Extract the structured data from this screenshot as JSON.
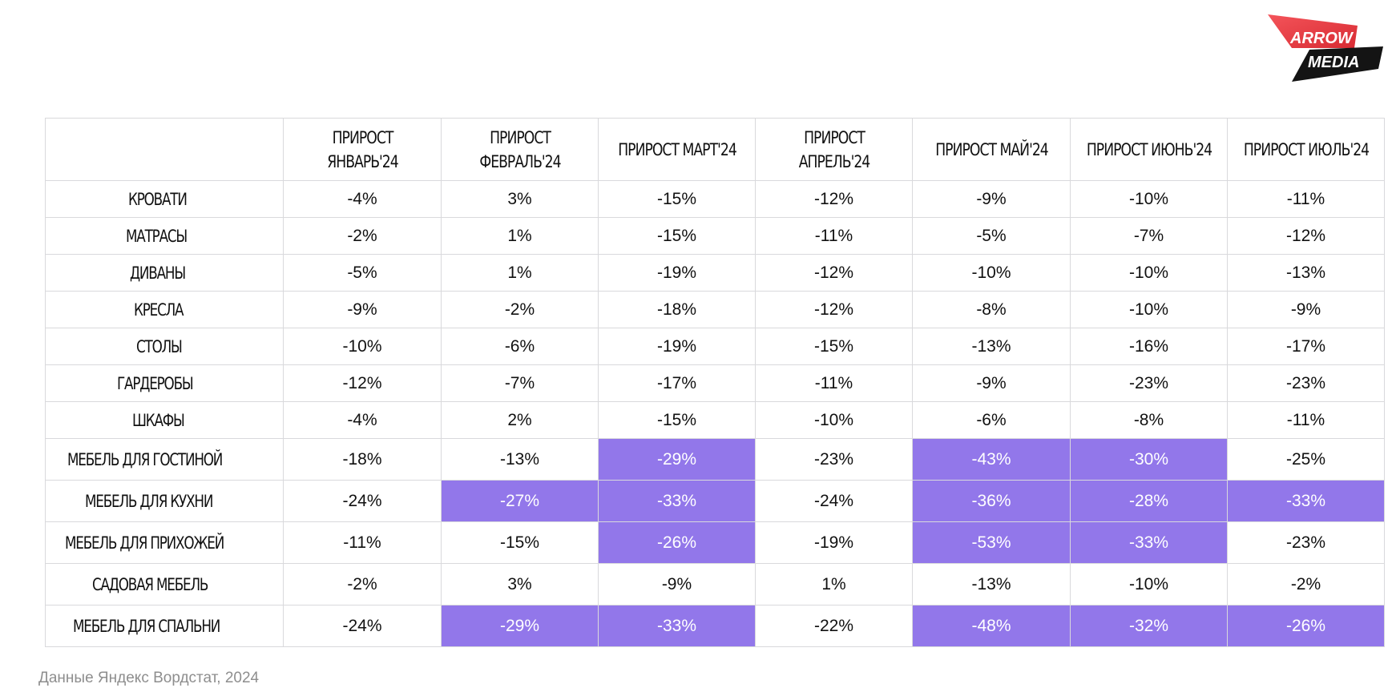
{
  "logo": {
    "line1": "ARROW",
    "line2": "MEDIA",
    "colors": {
      "red": "#ea3a3f",
      "dark": "#141414"
    }
  },
  "colors": {
    "highlight": "#9277ea",
    "grid": "#d9d9dc",
    "note": "#8e8e8e"
  },
  "chart_data": {
    "type": "table",
    "columns": [
      "",
      "ПРИРОСТ ЯНВАРЬ'24",
      "ПРИРОСТ ФЕВРАЛЬ'24",
      "ПРИРОСТ МАРТ'24",
      "ПРИРОСТ АПРЕЛЬ'24",
      "ПРИРОСТ МАЙ'24",
      "ПРИРОСТ ИЮНЬ'24",
      "ПРИРОСТ ИЮЛЬ'24"
    ],
    "rows": [
      {
        "label": "КРОВАТИ",
        "values": [
          "-4%",
          "3%",
          "-15%",
          "-12%",
          "-9%",
          "-10%",
          "-11%"
        ],
        "highlight": [
          false,
          false,
          false,
          false,
          false,
          false,
          false
        ]
      },
      {
        "label": "МАТРАСЫ",
        "values": [
          "-2%",
          "1%",
          "-15%",
          "-11%",
          "-5%",
          "-7%",
          "-12%"
        ],
        "highlight": [
          false,
          false,
          false,
          false,
          false,
          false,
          false
        ]
      },
      {
        "label": "ДИВАНЫ",
        "values": [
          "-5%",
          "1%",
          "-19%",
          "-12%",
          "-10%",
          "-10%",
          "-13%"
        ],
        "highlight": [
          false,
          false,
          false,
          false,
          false,
          false,
          false
        ]
      },
      {
        "label": "КРЕСЛА",
        "values": [
          "-9%",
          "-2%",
          "-18%",
          "-12%",
          "-8%",
          "-10%",
          "-9%"
        ],
        "highlight": [
          false,
          false,
          false,
          false,
          false,
          false,
          false
        ]
      },
      {
        "label": "СТОЛЫ",
        "values": [
          "-10%",
          "-6%",
          "-19%",
          "-15%",
          "-13%",
          "-16%",
          "-17%"
        ],
        "highlight": [
          false,
          false,
          false,
          false,
          false,
          false,
          false
        ]
      },
      {
        "label": "ГАРДЕРОБЫ",
        "values": [
          "-12%",
          "-7%",
          "-17%",
          "-11%",
          "-9%",
          "-23%",
          "-23%"
        ],
        "highlight": [
          false,
          false,
          false,
          false,
          false,
          false,
          false
        ]
      },
      {
        "label": "ШКАФЫ",
        "values": [
          "-4%",
          "2%",
          "-15%",
          "-10%",
          "-6%",
          "-8%",
          "-11%"
        ],
        "highlight": [
          false,
          false,
          false,
          false,
          false,
          false,
          false
        ]
      },
      {
        "label": "МЕБЕЛЬ ДЛЯ ГОСТИНОЙ",
        "values": [
          "-18%",
          "-13%",
          "-29%",
          "-23%",
          "-43%",
          "-30%",
          "-25%"
        ],
        "highlight": [
          false,
          false,
          true,
          false,
          true,
          true,
          false
        ]
      },
      {
        "label": "МЕБЕЛЬ ДЛЯ КУХНИ",
        "values": [
          "-24%",
          "-27%",
          "-33%",
          "-24%",
          "-36%",
          "-28%",
          "-33%"
        ],
        "highlight": [
          false,
          true,
          true,
          false,
          true,
          true,
          true
        ]
      },
      {
        "label": "МЕБЕЛЬ ДЛЯ ПРИХОЖЕЙ",
        "values": [
          "-11%",
          "-15%",
          "-26%",
          "-19%",
          "-53%",
          "-33%",
          "-23%"
        ],
        "highlight": [
          false,
          false,
          true,
          false,
          true,
          true,
          false
        ]
      },
      {
        "label": "САДОВАЯ МЕБЕЛЬ",
        "values": [
          "-2%",
          "3%",
          "-9%",
          "1%",
          "-13%",
          "-10%",
          "-2%"
        ],
        "highlight": [
          false,
          false,
          false,
          false,
          false,
          false,
          false
        ]
      },
      {
        "label": "МЕБЕЛЬ ДЛЯ СПАЛЬНИ",
        "values": [
          "-24%",
          "-29%",
          "-33%",
          "-22%",
          "-48%",
          "-32%",
          "-26%"
        ],
        "highlight": [
          false,
          true,
          true,
          false,
          true,
          true,
          true
        ]
      }
    ]
  },
  "footer": {
    "source": "Данные Яндекс Вордстат, 2024"
  }
}
